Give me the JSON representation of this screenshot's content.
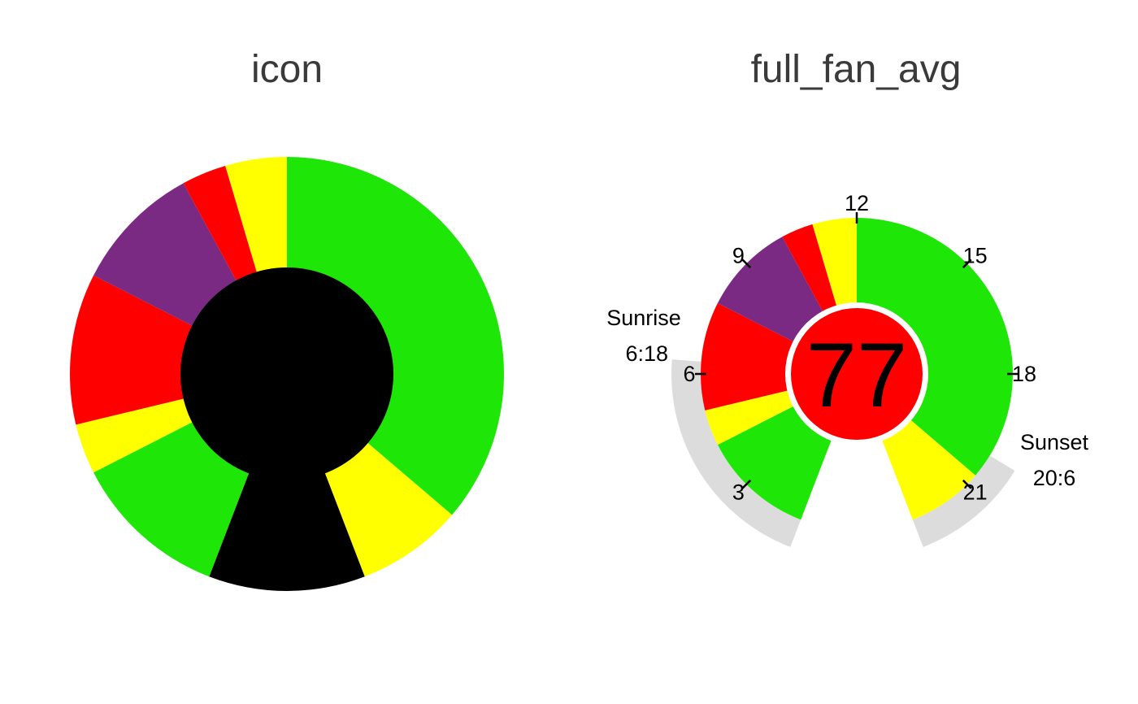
{
  "chart_data": [
    {
      "type": "pie",
      "title": "icon",
      "slices": [
        {
          "from": 12,
          "to": 20.7,
          "color": "green"
        },
        {
          "from": 20.7,
          "to": 22.6,
          "color": "yellow"
        },
        {
          "from": 22.6,
          "to": 25.4,
          "color": "black"
        },
        {
          "from": 1.4,
          "to": 4.2,
          "color": "green"
        },
        {
          "from": 4.2,
          "to": 5.1,
          "color": "yellow"
        },
        {
          "from": 5.1,
          "to": 7.8,
          "color": "red"
        },
        {
          "from": 7.8,
          "to": 10.1,
          "color": "purple"
        },
        {
          "from": 10.1,
          "to": 10.9,
          "color": "red"
        },
        {
          "from": 10.9,
          "to": 12,
          "color": "yellow"
        }
      ],
      "center": {
        "color": "black"
      },
      "period_hours": 24
    },
    {
      "type": "pie",
      "title": "full_fan_avg",
      "slices": [
        {
          "from": 12,
          "to": 20.7,
          "color": "green"
        },
        {
          "from": 20.7,
          "to": 22.6,
          "color": "yellow"
        },
        {
          "from": 1.4,
          "to": 4.2,
          "color": "green"
        },
        {
          "from": 4.2,
          "to": 5.1,
          "color": "yellow"
        },
        {
          "from": 5.1,
          "to": 7.8,
          "color": "red"
        },
        {
          "from": 7.8,
          "to": 10.1,
          "color": "purple"
        },
        {
          "from": 10.1,
          "to": 10.9,
          "color": "red"
        },
        {
          "from": 10.9,
          "to": 12,
          "color": "yellow"
        }
      ],
      "gap": {
        "from": 22.6,
        "to": 25.4
      },
      "night_band": [
        {
          "from": 20.1,
          "to": 22.6
        },
        {
          "from": 1.4,
          "to": 6.3
        }
      ],
      "hour_ticks": [
        "3",
        "6",
        "9",
        "12",
        "15",
        "18",
        "21"
      ],
      "sunrise": {
        "label": "Sunrise",
        "time": "6:18",
        "hour": 6.3
      },
      "sunset": {
        "label": "Sunset",
        "time": "20:6",
        "hour": 20.1
      },
      "center": {
        "value": "77",
        "color": "red"
      },
      "period_hours": 24
    }
  ],
  "colors": {
    "green": "#1ee606",
    "yellow": "#ffff00",
    "red": "#ff0000",
    "purple": "#7b2a83",
    "black": "#000000",
    "night": "#dcdcdc"
  }
}
